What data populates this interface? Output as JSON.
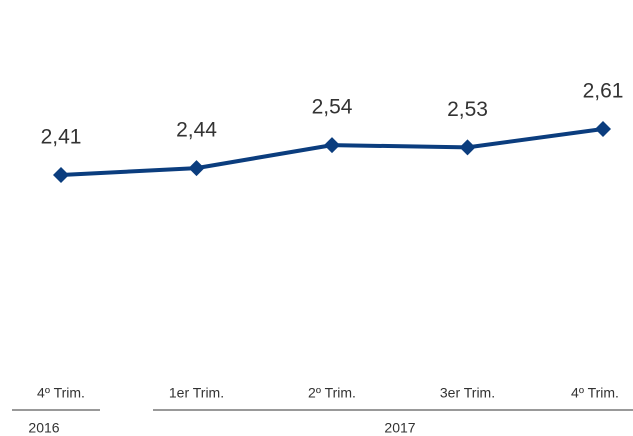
{
  "chart_data": {
    "type": "line",
    "categories": [
      "4º Trim.",
      "1er Trim.",
      "2º Trim.",
      "3er Trim.",
      "4º Trim."
    ],
    "groups": [
      "2016",
      "2017"
    ],
    "series": [
      {
        "color": "#0b3d7e",
        "values": [
          2.41,
          2.44,
          2.54,
          2.53,
          2.61
        ],
        "value_labels": [
          "2,41",
          "2,44",
          "2,54",
          "2,53",
          "2,61"
        ]
      }
    ]
  }
}
